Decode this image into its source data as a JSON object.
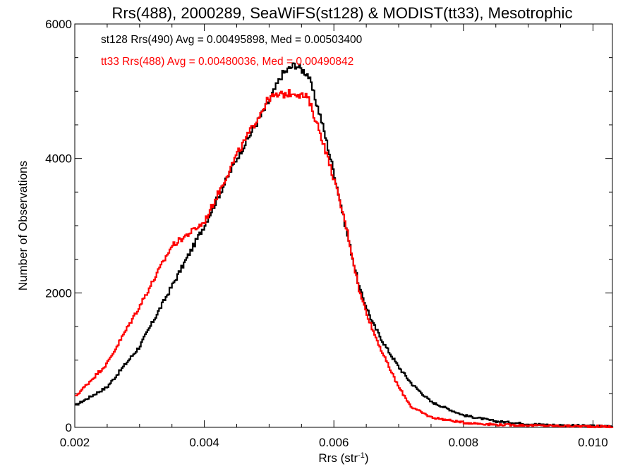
{
  "chart_data": {
    "type": "line",
    "title": "Rrs(488), 2000289, SeaWiFS(st128) & MODIST(tt33), Mesotrophic",
    "xlabel": "Rrs (str",
    "xlabel_sup": "-1",
    "xlabel_end": ")",
    "ylabel": "Number of Observations",
    "xlim": [
      0.002,
      0.0103
    ],
    "ylim": [
      0,
      6000
    ],
    "xticks": [
      0.002,
      0.004,
      0.006,
      0.008,
      0.01
    ],
    "xtick_labels": [
      "0.002",
      "0.004",
      "0.006",
      "0.008",
      "0.010"
    ],
    "yticks": [
      0,
      2000,
      4000,
      6000
    ],
    "ytick_labels": [
      "0",
      "2000",
      "4000",
      "6000"
    ],
    "annotations": [
      "st128 Rrs(490) Avg = 0.00495898, Med = 0.00503400",
      "tt33 Rrs(488) Avg = 0.00480036, Med = 0.00490842"
    ],
    "grid": false,
    "series": [
      {
        "color": "#000000",
        "x": [
          0.002,
          0.0025,
          0.003,
          0.0035,
          0.004,
          0.0045,
          0.005,
          0.0052,
          0.0054,
          0.0056,
          0.0058,
          0.006,
          0.0062,
          0.0064,
          0.0066,
          0.0068,
          0.007,
          0.0072,
          0.0075,
          0.008,
          0.0085,
          0.009,
          0.0095,
          0.01,
          0.0103
        ],
        "values": [
          320,
          600,
          1200,
          2100,
          3000,
          4000,
          4850,
          5250,
          5400,
          5250,
          4600,
          3800,
          2900,
          2050,
          1550,
          1200,
          900,
          650,
          380,
          180,
          90,
          50,
          30,
          20,
          15
        ]
      },
      {
        "color": "#ff0000",
        "x": [
          0.002,
          0.0025,
          0.003,
          0.0035,
          0.004,
          0.0045,
          0.005,
          0.0052,
          0.0054,
          0.0056,
          0.0058,
          0.006,
          0.0062,
          0.0064,
          0.0066,
          0.0068,
          0.007,
          0.0072,
          0.0075,
          0.008,
          0.0085,
          0.009,
          0.0095,
          0.01,
          0.0103
        ],
        "values": [
          450,
          950,
          1800,
          2700,
          3050,
          4050,
          4900,
          4950,
          4980,
          4900,
          4350,
          3700,
          2950,
          2000,
          1450,
          1000,
          600,
          300,
          150,
          70,
          40,
          30,
          20,
          15,
          10
        ]
      }
    ]
  }
}
